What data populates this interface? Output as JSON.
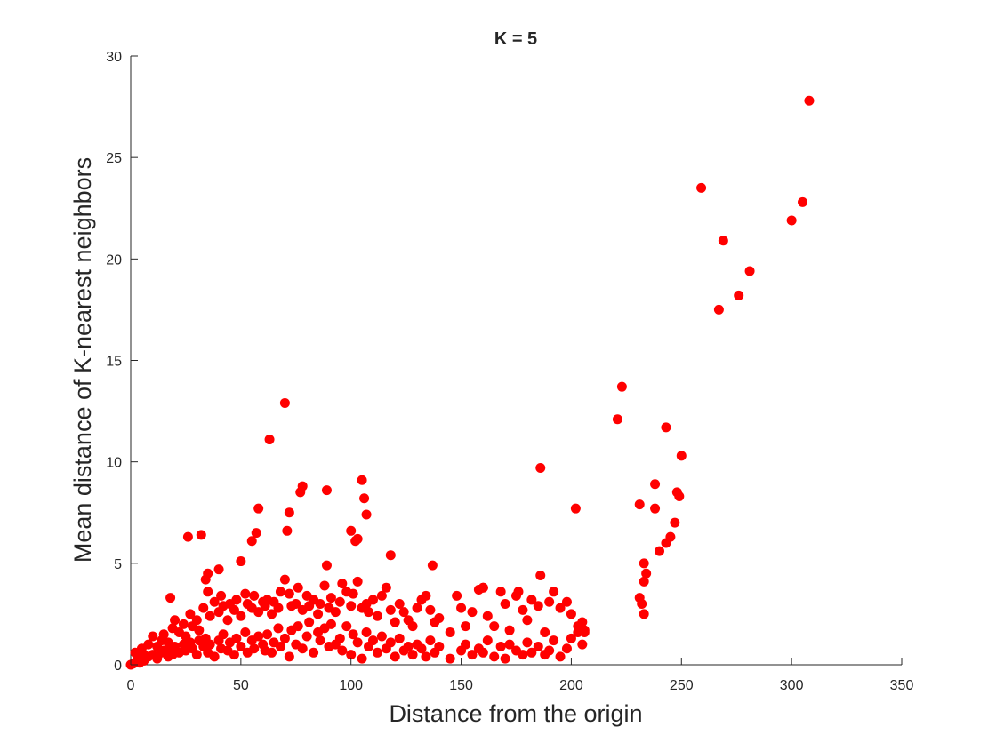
{
  "chart_data": {
    "type": "scatter",
    "title": "K = 5",
    "x_label": "Distance from the origin",
    "y_label": "Mean distance of K-nearest neighbors",
    "xlim": [
      0,
      350
    ],
    "xticks": [
      0,
      50,
      100,
      150,
      200,
      250,
      300,
      350
    ],
    "ylim": [
      0,
      30
    ],
    "yticks": [
      0,
      5,
      10,
      15,
      20,
      25,
      30
    ],
    "series": [
      {
        "color": "#ff0000",
        "x": [
          2,
          3,
          5,
          6,
          8,
          10,
          12,
          14,
          15,
          17,
          18,
          19,
          20,
          22,
          24,
          25,
          27,
          28,
          30,
          31,
          33,
          34,
          35,
          36,
          38,
          40,
          41,
          42,
          44,
          45,
          47,
          48,
          50,
          52,
          53,
          55,
          56,
          58,
          60,
          61,
          62,
          64,
          65,
          67,
          68,
          70,
          72,
          73,
          75,
          76,
          78,
          80,
          81,
          83,
          85,
          86,
          88,
          90,
          91,
          93,
          95,
          96,
          98,
          100,
          101,
          103,
          105,
          107,
          108,
          110,
          112,
          114,
          116,
          118,
          120,
          122,
          124,
          126,
          128,
          130,
          132,
          134,
          136,
          138,
          140,
          145,
          150,
          152,
          155,
          158,
          160,
          162,
          165,
          168,
          170,
          172,
          175,
          178,
          180,
          182,
          185,
          188,
          190,
          192,
          195,
          198,
          200,
          203,
          205,
          206,
          2,
          3,
          5,
          6,
          8,
          10,
          12,
          14,
          15,
          17,
          18,
          19,
          20,
          22,
          24,
          25,
          27,
          28,
          30,
          31,
          33,
          34,
          35,
          36,
          38,
          40,
          41,
          42,
          44,
          45,
          47,
          48,
          50,
          52,
          53,
          55,
          56,
          58,
          60,
          61,
          62,
          64,
          65,
          67,
          68,
          70,
          72,
          73,
          75,
          76,
          78,
          80,
          81,
          83,
          85,
          86,
          88,
          90,
          91,
          93,
          95,
          96,
          98,
          100,
          101,
          103,
          105,
          107,
          108,
          110,
          112,
          114,
          116,
          118,
          120,
          122,
          124,
          126,
          128,
          130,
          132,
          134,
          136,
          138,
          140,
          145,
          150,
          152,
          155,
          158,
          160,
          162,
          165,
          168,
          170,
          172,
          175,
          178,
          180,
          182,
          185,
          188,
          190,
          192,
          195,
          198,
          200,
          203,
          205,
          206,
          308,
          259,
          305,
          300,
          269,
          281,
          276,
          267,
          223,
          221,
          70,
          63,
          243,
          250,
          186,
          105,
          78,
          77,
          89,
          106,
          238,
          248,
          249,
          202,
          231,
          238,
          58,
          72,
          107,
          247,
          100,
          57,
          71,
          103,
          26,
          32,
          55,
          245,
          243,
          240,
          118,
          102,
          233,
          234,
          233,
          137,
          89,
          50,
          40,
          35,
          186,
          231,
          232,
          233,
          0,
          1,
          4,
          160,
          176,
          148
        ],
        "values": [
          0.6,
          0.3,
          0.8,
          0.5,
          1.0,
          1.4,
          0.9,
          1.2,
          1.5,
          1.1,
          3.3,
          1.8,
          2.2,
          1.6,
          2.0,
          1.4,
          2.5,
          1.9,
          2.2,
          1.7,
          2.8,
          4.2,
          3.6,
          2.4,
          3.1,
          2.6,
          3.4,
          2.9,
          2.2,
          3.0,
          2.7,
          3.2,
          2.4,
          3.5,
          3.0,
          2.8,
          3.4,
          2.6,
          3.1,
          2.9,
          3.2,
          2.5,
          3.1,
          2.8,
          3.6,
          4.2,
          3.5,
          2.9,
          3.0,
          3.8,
          2.7,
          3.4,
          2.9,
          3.2,
          2.5,
          3.0,
          3.9,
          2.8,
          3.3,
          2.6,
          3.1,
          4.0,
          3.6,
          2.9,
          3.5,
          4.1,
          2.8,
          3.0,
          2.6,
          3.2,
          2.4,
          3.4,
          3.8,
          2.7,
          2.1,
          3.0,
          2.6,
          2.2,
          1.9,
          2.8,
          3.2,
          3.4,
          2.7,
          2.1,
          2.3,
          1.6,
          2.8,
          1.9,
          2.6,
          3.7,
          3.8,
          2.4,
          1.9,
          3.6,
          3.0,
          1.7,
          3.4,
          2.7,
          2.2,
          3.2,
          2.9,
          1.6,
          3.1,
          3.6,
          2.8,
          3.1,
          2.5,
          1.9,
          2.1,
          1.6,
          0.1,
          0.2,
          0.3,
          0.2,
          0.4,
          0.5,
          0.3,
          0.6,
          0.7,
          0.4,
          0.8,
          0.5,
          0.9,
          0.6,
          1.0,
          0.7,
          1.1,
          0.8,
          0.5,
          1.2,
          0.9,
          1.3,
          0.6,
          1.0,
          0.4,
          1.2,
          0.8,
          1.5,
          0.7,
          1.1,
          0.5,
          1.3,
          0.9,
          1.6,
          0.6,
          1.2,
          0.8,
          1.4,
          1.0,
          0.7,
          1.5,
          0.6,
          1.1,
          1.8,
          0.9,
          1.3,
          0.4,
          1.7,
          1.0,
          1.9,
          0.8,
          1.4,
          2.1,
          0.6,
          1.6,
          1.2,
          1.8,
          0.9,
          2.0,
          1.0,
          1.3,
          0.7,
          1.9,
          0.5,
          1.5,
          1.1,
          0.3,
          1.6,
          0.9,
          1.2,
          0.6,
          1.4,
          0.8,
          1.1,
          0.4,
          1.3,
          0.7,
          0.9,
          0.5,
          1.0,
          0.8,
          0.4,
          1.2,
          0.6,
          0.9,
          0.3,
          0.7,
          1.0,
          0.5,
          0.8,
          0.6,
          1.2,
          0.4,
          0.9,
          0.3,
          1.0,
          0.7,
          0.5,
          1.1,
          0.6,
          0.9,
          0.5,
          0.7,
          1.2,
          0.4,
          0.8,
          1.3,
          1.6,
          1.0,
          1.7,
          27.8,
          23.5,
          22.8,
          21.9,
          20.9,
          19.4,
          18.2,
          17.5,
          13.7,
          12.1,
          12.9,
          11.1,
          11.7,
          10.3,
          9.7,
          9.1,
          8.8,
          8.5,
          8.6,
          8.2,
          8.9,
          8.5,
          8.3,
          7.7,
          7.9,
          7.7,
          7.7,
          7.5,
          7.4,
          7.0,
          6.6,
          6.5,
          6.6,
          6.2,
          6.3,
          6.4,
          6.1,
          6.3,
          6.0,
          5.6,
          5.4,
          6.1,
          5.0,
          4.5,
          4.1,
          4.9,
          4.9,
          5.1,
          4.7,
          4.5,
          4.4,
          3.3,
          3.0,
          2.5,
          0.0,
          0.05,
          0.1,
          3.8,
          3.6,
          3.4
        ]
      }
    ]
  }
}
